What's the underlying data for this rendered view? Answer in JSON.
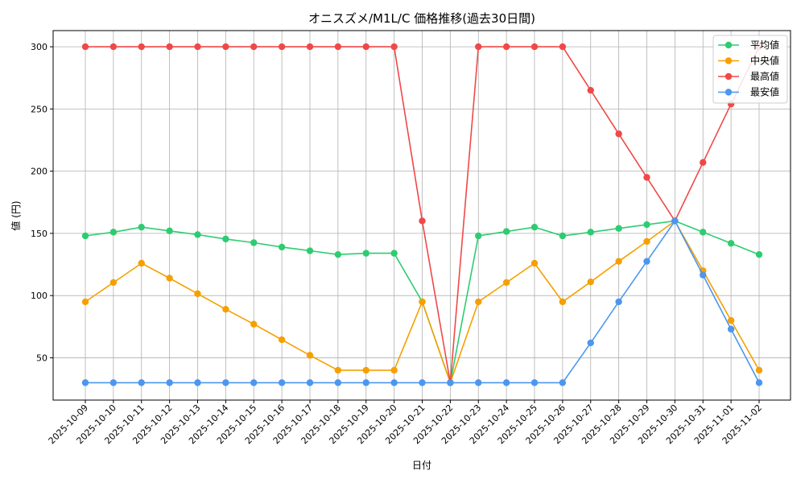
{
  "chart_data": {
    "type": "line",
    "title": "オニスズメ/M1L/C 価格推移(過去30日間)",
    "xlabel": "日付",
    "ylabel": "値 (円)",
    "ylim": [
      16,
      313
    ],
    "yticks": [
      50,
      100,
      150,
      200,
      250,
      300
    ],
    "grid": true,
    "legend_position": "top-right",
    "categories": [
      "2025-10-09",
      "2025-10-10",
      "2025-10-11",
      "2025-10-12",
      "2025-10-13",
      "2025-10-14",
      "2025-10-15",
      "2025-10-16",
      "2025-10-17",
      "2025-10-18",
      "2025-10-19",
      "2025-10-20",
      "2025-10-21",
      "2025-10-22",
      "2025-10-23",
      "2025-10-24",
      "2025-10-25",
      "2025-10-26",
      "2025-10-27",
      "2025-10-28",
      "2025-10-29",
      "2025-10-30",
      "2025-10-31",
      "2025-11-01",
      "2025-11-02"
    ],
    "series": [
      {
        "name": "平均値",
        "color": "#2ecc71",
        "values": [
          148,
          151,
          155,
          152,
          149,
          145.5,
          142.5,
          139,
          136,
          133,
          134,
          134,
          95,
          30,
          148,
          151.5,
          155,
          148,
          151,
          154,
          157,
          160,
          151,
          142,
          133
        ]
      },
      {
        "name": "中央値",
        "color": "#f5a000",
        "values": [
          95,
          110.5,
          126,
          114,
          101.5,
          89,
          77,
          64.5,
          52,
          40,
          40,
          40,
          95,
          30,
          95,
          110.5,
          126,
          95,
          111,
          127.5,
          143.5,
          160,
          120,
          80,
          40
        ]
      },
      {
        "name": "最高値",
        "color": "#f04848",
        "values": [
          300,
          300,
          300,
          300,
          300,
          300,
          300,
          300,
          300,
          300,
          300,
          300,
          160,
          30,
          300,
          300,
          300,
          300,
          265,
          230,
          195,
          160,
          207,
          254,
          300
        ]
      },
      {
        "name": "最安値",
        "color": "#4c96f0",
        "values": [
          30,
          30,
          30,
          30,
          30,
          30,
          30,
          30,
          30,
          30,
          30,
          30,
          30,
          30,
          30,
          30,
          30,
          30,
          62,
          95,
          127.5,
          160,
          116.5,
          73,
          30
        ]
      }
    ]
  }
}
